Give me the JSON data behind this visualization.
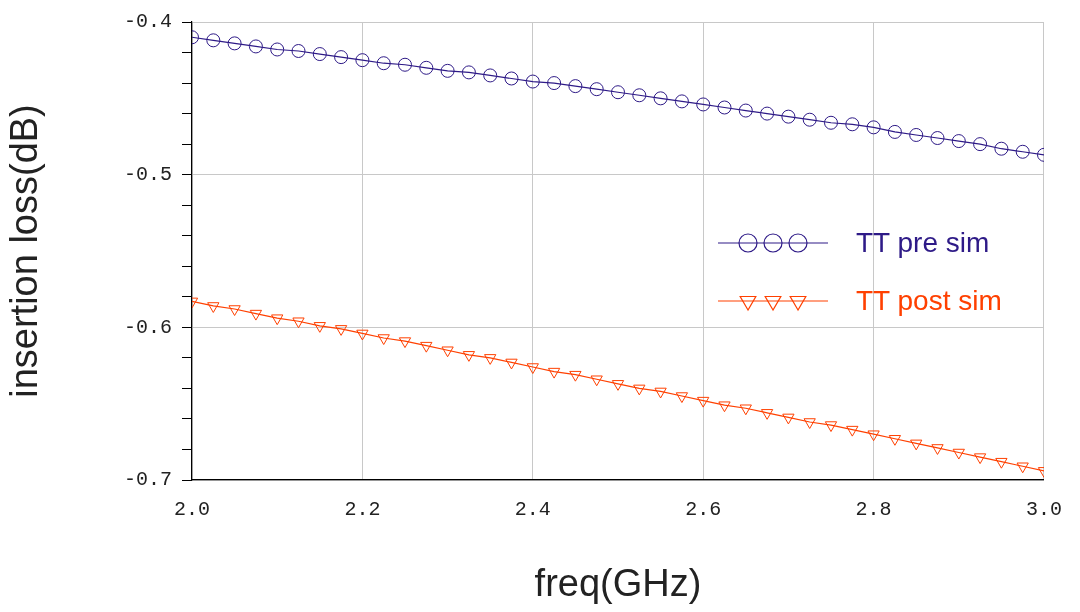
{
  "chart_data": {
    "type": "line",
    "xlabel": "freq(GHz)",
    "ylabel": "insertion loss(dB)",
    "x": [
      2.0,
      2.025,
      2.05,
      2.075,
      2.1,
      2.125,
      2.15,
      2.175,
      2.2,
      2.225,
      2.25,
      2.275,
      2.3,
      2.325,
      2.35,
      2.375,
      2.4,
      2.425,
      2.45,
      2.475,
      2.5,
      2.525,
      2.55,
      2.575,
      2.6,
      2.625,
      2.65,
      2.675,
      2.7,
      2.725,
      2.75,
      2.775,
      2.8,
      2.825,
      2.85,
      2.875,
      2.9,
      2.925,
      2.95,
      2.975,
      3.0
    ],
    "series": [
      {
        "name": "TT pre sim",
        "color": "#2e1a87",
        "marker": "circle",
        "values": [
          -0.41,
          -0.412,
          -0.414,
          -0.416,
          -0.418,
          -0.419,
          -0.421,
          -0.423,
          -0.425,
          -0.427,
          -0.428,
          -0.43,
          -0.432,
          -0.433,
          -0.435,
          -0.437,
          -0.439,
          -0.44,
          -0.442,
          -0.444,
          -0.446,
          -0.448,
          -0.45,
          -0.452,
          -0.454,
          -0.456,
          -0.458,
          -0.46,
          -0.462,
          -0.464,
          -0.466,
          -0.467,
          -0.469,
          -0.472,
          -0.474,
          -0.476,
          -0.478,
          -0.48,
          -0.483,
          -0.485,
          -0.487
        ]
      },
      {
        "name": "TT post sim",
        "color": "#ff4000",
        "marker": "triangle",
        "values": [
          -0.583,
          -0.586,
          -0.588,
          -0.591,
          -0.594,
          -0.596,
          -0.599,
          -0.601,
          -0.604,
          -0.607,
          -0.609,
          -0.612,
          -0.615,
          -0.618,
          -0.62,
          -0.623,
          -0.626,
          -0.629,
          -0.631,
          -0.634,
          -0.637,
          -0.64,
          -0.642,
          -0.645,
          -0.648,
          -0.651,
          -0.653,
          -0.656,
          -0.659,
          -0.662,
          -0.664,
          -0.667,
          -0.67,
          -0.673,
          -0.676,
          -0.679,
          -0.682,
          -0.685,
          -0.688,
          -0.691,
          -0.694
        ]
      }
    ],
    "xlim": [
      2.0,
      3.0
    ],
    "xticks": [
      {
        "value": 2.0,
        "label": "2.0"
      },
      {
        "value": 2.2,
        "label": "2.2"
      },
      {
        "value": 2.4,
        "label": "2.4"
      },
      {
        "value": 2.6,
        "label": "2.6"
      },
      {
        "value": 2.8,
        "label": "2.8"
      },
      {
        "value": 3.0,
        "label": "3.0"
      }
    ],
    "ylim": [
      -0.7,
      -0.4
    ],
    "yticks": [
      -0.7,
      {
        "value": -0.68,
        "label": null
      },
      {
        "value": -0.66,
        "label": null
      },
      {
        "value": -0.64,
        "label": null
      },
      {
        "value": -0.62,
        "label": null
      },
      -0.6,
      {
        "value": -0.58,
        "label": null
      },
      {
        "value": -0.56,
        "label": null
      },
      {
        "value": -0.54,
        "label": null
      },
      {
        "value": -0.52,
        "label": null
      },
      -0.5,
      {
        "value": -0.48,
        "label": null
      },
      {
        "value": -0.46,
        "label": null
      },
      {
        "value": -0.44,
        "label": null
      },
      {
        "value": -0.42,
        "label": null
      },
      -0.4
    ],
    "grid": true,
    "legend": "right",
    "line_style": "solid"
  }
}
